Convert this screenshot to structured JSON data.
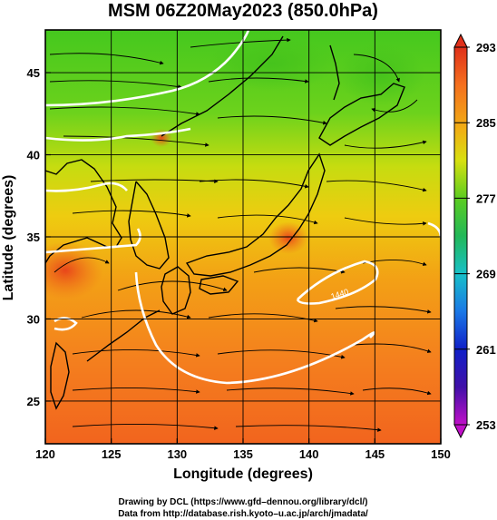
{
  "chart_data": {
    "type": "heatmap",
    "title": "MSM 06Z20May2023 (850.0hPa)",
    "xlabel": "Longitude (degrees)",
    "ylabel": "Latitude  (degrees)",
    "xlim": [
      120,
      150
    ],
    "ylim": [
      22.4,
      47.6
    ],
    "x_ticks": [
      120,
      125,
      130,
      135,
      140,
      145,
      150
    ],
    "y_ticks": [
      25,
      30,
      35,
      40,
      45
    ],
    "grid": true,
    "colorbar": {
      "min": 253,
      "max": 293,
      "ticks": [
        253,
        261,
        269,
        277,
        285,
        293
      ],
      "placement": "right"
    },
    "contour_labels": [
      {
        "text": "1440",
        "lon": 143.5,
        "lat": 32.8
      }
    ],
    "credit_lines": [
      "Drawing by DCL (https://www.gfd–dennou.org/library/dcl/)",
      "Data from http://database.rish.kyoto–u.ac.jp/arch/jmadata/"
    ]
  }
}
